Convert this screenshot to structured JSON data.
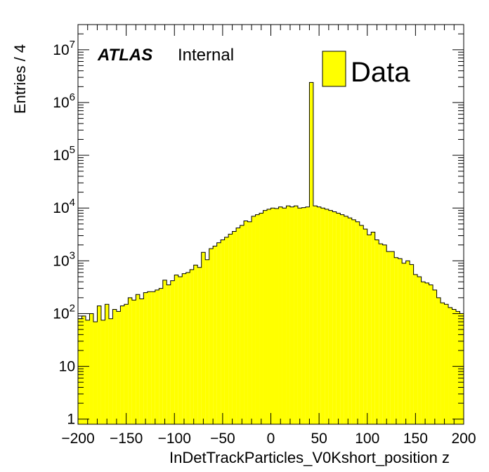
{
  "chart_data": {
    "type": "bar",
    "xlabel": "InDetTrackParticles_V0Kshort_position z",
    "ylabel": "Entries / 4",
    "xlim": [
      -200,
      200
    ],
    "ylim": [
      0.8,
      30000000
    ],
    "yscale": "log",
    "bin_width": 4,
    "x_ticks": [
      -200,
      -150,
      -100,
      -50,
      0,
      50,
      100,
      150,
      200
    ],
    "x_tick_labels": [
      "−200",
      "−150",
      "−100",
      "−50",
      "0",
      "50",
      "100",
      "150",
      "200"
    ],
    "y_ticks": [
      {
        "value": 1,
        "base": "1",
        "exp": ""
      },
      {
        "value": 10,
        "base": "10",
        "exp": ""
      },
      {
        "value": 100,
        "base": "10",
        "exp": "2"
      },
      {
        "value": 1000,
        "base": "10",
        "exp": "3"
      },
      {
        "value": 10000,
        "base": "10",
        "exp": "4"
      },
      {
        "value": 100000,
        "base": "10",
        "exp": "5"
      },
      {
        "value": 1000000,
        "base": "10",
        "exp": "6"
      },
      {
        "value": 10000000,
        "base": "10",
        "exp": "7"
      }
    ],
    "series": [
      {
        "name": "Data",
        "color": "#ffff00",
        "x": [
          -198,
          -194,
          -190,
          -186,
          -182,
          -178,
          -174,
          -170,
          -166,
          -162,
          -158,
          -154,
          -150,
          -146,
          -142,
          -138,
          -134,
          -130,
          -126,
          -122,
          -118,
          -114,
          -110,
          -106,
          -102,
          -98,
          -94,
          -90,
          -86,
          -82,
          -78,
          -74,
          -70,
          -66,
          -62,
          -58,
          -54,
          -50,
          -46,
          -42,
          -38,
          -34,
          -30,
          -26,
          -22,
          -18,
          -14,
          -10,
          -6,
          -2,
          2,
          6,
          10,
          14,
          18,
          22,
          26,
          30,
          34,
          38,
          42,
          46,
          50,
          54,
          58,
          62,
          66,
          70,
          74,
          78,
          82,
          86,
          90,
          94,
          98,
          102,
          106,
          110,
          114,
          118,
          122,
          126,
          130,
          134,
          138,
          142,
          146,
          150,
          154,
          158,
          162,
          166,
          170,
          174,
          178,
          182,
          186,
          190,
          194,
          198
        ],
        "values": [
          80,
          90,
          75,
          100,
          70,
          140,
          75,
          150,
          80,
          120,
          110,
          140,
          150,
          200,
          180,
          230,
          190,
          250,
          260,
          260,
          280,
          300,
          430,
          350,
          420,
          540,
          500,
          570,
          600,
          680,
          830,
          750,
          1450,
          1050,
          1700,
          1900,
          2200,
          2500,
          2800,
          3200,
          3600,
          4200,
          4700,
          5700,
          5500,
          7000,
          7500,
          8000,
          9000,
          9500,
          10000,
          9800,
          10500,
          10000,
          11000,
          10500,
          11000,
          10000,
          10200,
          10500,
          2400000,
          11000,
          10500,
          10000,
          9500,
          9000,
          8500,
          8000,
          7500,
          7000,
          6500,
          6000,
          5500,
          4700,
          4000,
          3100,
          3500,
          2500,
          2100,
          2000,
          1500,
          1500,
          1150,
          1100,
          900,
          1000,
          850,
          550,
          500,
          400,
          380,
          350,
          280,
          200,
          160,
          150,
          130,
          120,
          110,
          100
        ],
        "values_centered_note_removed": true
      }
    ]
  },
  "labels": {
    "experiment": "ATLAS",
    "status": "Internal",
    "legend_entry": "Data"
  }
}
